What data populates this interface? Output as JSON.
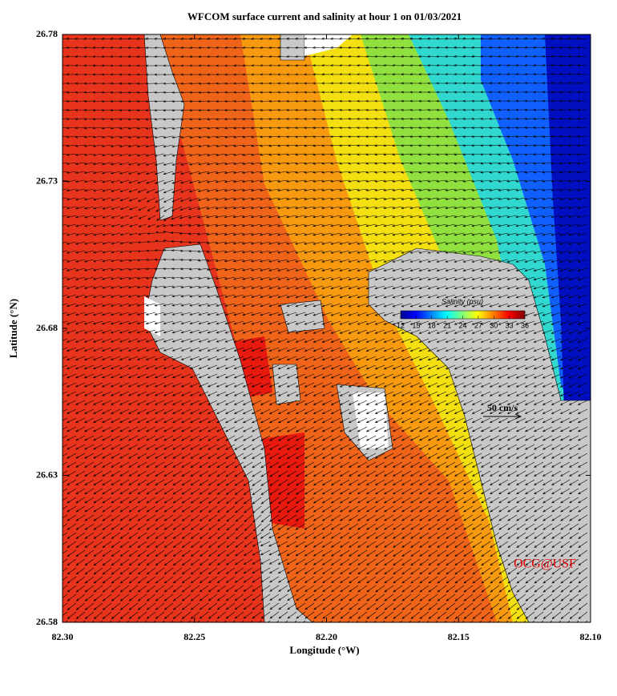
{
  "chart_data": {
    "type": "map",
    "title": "WFCOM surface current and salinity at hour 1 on 01/03/2021",
    "xlabel": "Longitude (°W)",
    "ylabel": "Latitude (°N)",
    "xlim": [
      82.3,
      82.1
    ],
    "xticks": [
      {
        "value": 82.3,
        "label": "82.30"
      },
      {
        "value": 82.25,
        "label": "82.25"
      },
      {
        "value": 82.2,
        "label": "82.20"
      },
      {
        "value": 82.15,
        "label": "82.15"
      },
      {
        "value": 82.1,
        "label": "82.10"
      }
    ],
    "ylim": [
      26.58,
      26.78
    ],
    "yticks": [
      26.58,
      26.63,
      26.68,
      26.73,
      26.78
    ],
    "colorbar": {
      "title": "Salinity (psu)",
      "lim": [
        12,
        36
      ],
      "ticks": [
        12,
        15,
        18,
        21,
        24,
        27,
        30,
        33,
        36
      ]
    },
    "scale_label": "50 cm/s",
    "credit": "OCG@USF"
  }
}
